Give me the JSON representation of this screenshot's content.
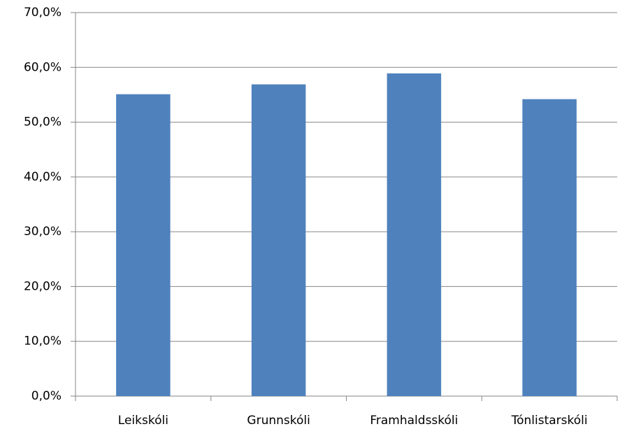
{
  "chart_data": {
    "type": "bar",
    "categories": [
      "Leikskóli",
      "Grunnskóli",
      "Framhaldsskóli",
      "Tónlistarskóli"
    ],
    "values": [
      55.1,
      56.9,
      58.9,
      54.2
    ],
    "color": "#4f81bd",
    "ylim": [
      0,
      70
    ],
    "yticks": [
      {
        "value": 0,
        "label": "0,0%"
      },
      {
        "value": 10,
        "label": "10,0%"
      },
      {
        "value": 20,
        "label": "20,0%"
      },
      {
        "value": 30,
        "label": "30,0%"
      },
      {
        "value": 40,
        "label": "40,0%"
      },
      {
        "value": 50,
        "label": "50,0%"
      },
      {
        "value": 60,
        "label": "60,0%"
      },
      {
        "value": 70,
        "label": "70,0%"
      }
    ],
    "grid": true
  }
}
